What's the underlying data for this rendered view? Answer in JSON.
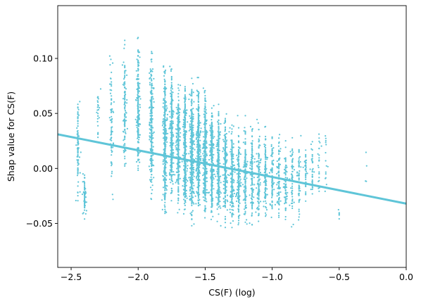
{
  "chart_data": {
    "type": "scatter",
    "title": "",
    "xlabel": "CS(F) (log)",
    "ylabel": "Shap value for CS(F)",
    "xlim": [
      -2.6,
      0.0
    ],
    "ylim": [
      -0.09,
      0.148
    ],
    "x_ticks": [
      -2.5,
      -2.0,
      -1.5,
      -1.0,
      -0.5,
      0.0
    ],
    "x_tick_labels": [
      "−2.5",
      "−2.0",
      "−1.5",
      "−1.0",
      "−0.5",
      "0.0"
    ],
    "y_ticks": [
      -0.05,
      0.0,
      0.05,
      0.1
    ],
    "y_tick_labels": [
      "−0.05",
      "0.00",
      "0.05",
      "0.10"
    ],
    "grid": false,
    "legend": "none",
    "color": "#5fc5d8",
    "point_clusters": [
      {
        "x": -2.45,
        "y_min": -0.045,
        "y_max": 0.08,
        "n": 90
      },
      {
        "x": -2.4,
        "y_min": -0.05,
        "y_max": 0.0,
        "n": 70
      },
      {
        "x": -2.3,
        "y_min": 0.02,
        "y_max": 0.09,
        "n": 25
      },
      {
        "x": -2.2,
        "y_min": -0.04,
        "y_max": 0.13,
        "n": 80
      },
      {
        "x": -2.1,
        "y_min": -0.02,
        "y_max": 0.13,
        "n": 120
      },
      {
        "x": -2.0,
        "y_min": -0.03,
        "y_max": 0.13,
        "n": 220
      },
      {
        "x": -1.9,
        "y_min": -0.04,
        "y_max": 0.12,
        "n": 260
      },
      {
        "x": -1.8,
        "y_min": -0.06,
        "y_max": 0.11,
        "n": 380
      },
      {
        "x": -1.75,
        "y_min": -0.045,
        "y_max": 0.1,
        "n": 320
      },
      {
        "x": -1.7,
        "y_min": -0.05,
        "y_max": 0.09,
        "n": 300
      },
      {
        "x": -1.65,
        "y_min": -0.055,
        "y_max": 0.09,
        "n": 420
      },
      {
        "x": -1.6,
        "y_min": -0.06,
        "y_max": 0.09,
        "n": 480
      },
      {
        "x": -1.55,
        "y_min": -0.05,
        "y_max": 0.085,
        "n": 460
      },
      {
        "x": -1.5,
        "y_min": -0.06,
        "y_max": 0.08,
        "n": 420
      },
      {
        "x": -1.45,
        "y_min": -0.055,
        "y_max": 0.07,
        "n": 360
      },
      {
        "x": -1.4,
        "y_min": -0.06,
        "y_max": 0.065,
        "n": 280
      },
      {
        "x": -1.35,
        "y_min": -0.06,
        "y_max": 0.06,
        "n": 220
      },
      {
        "x": -1.3,
        "y_min": -0.065,
        "y_max": 0.055,
        "n": 200
      },
      {
        "x": -1.25,
        "y_min": -0.065,
        "y_max": 0.05,
        "n": 170
      },
      {
        "x": -1.2,
        "y_min": -0.065,
        "y_max": 0.05,
        "n": 150
      },
      {
        "x": -1.15,
        "y_min": -0.065,
        "y_max": 0.05,
        "n": 140
      },
      {
        "x": -1.1,
        "y_min": -0.06,
        "y_max": 0.05,
        "n": 120
      },
      {
        "x": -1.05,
        "y_min": -0.06,
        "y_max": 0.045,
        "n": 110
      },
      {
        "x": -1.0,
        "y_min": -0.06,
        "y_max": 0.04,
        "n": 100
      },
      {
        "x": -0.95,
        "y_min": -0.06,
        "y_max": 0.045,
        "n": 90
      },
      {
        "x": -0.9,
        "y_min": -0.065,
        "y_max": 0.035,
        "n": 70
      },
      {
        "x": -0.85,
        "y_min": -0.06,
        "y_max": 0.04,
        "n": 60
      },
      {
        "x": -0.8,
        "y_min": -0.06,
        "y_max": 0.04,
        "n": 55
      },
      {
        "x": -0.75,
        "y_min": -0.045,
        "y_max": 0.03,
        "n": 45
      },
      {
        "x": -0.7,
        "y_min": -0.04,
        "y_max": 0.045,
        "n": 35
      },
      {
        "x": -0.65,
        "y_min": -0.03,
        "y_max": 0.045,
        "n": 25
      },
      {
        "x": -0.6,
        "y_min": -0.03,
        "y_max": 0.045,
        "n": 15
      },
      {
        "x": -0.5,
        "y_min": -0.055,
        "y_max": -0.03,
        "n": 6
      },
      {
        "x": -0.3,
        "y_min": -0.035,
        "y_max": 0.04,
        "n": 4
      }
    ],
    "trend_line": {
      "x": [
        -2.6,
        0.0
      ],
      "y": [
        0.031,
        -0.032
      ]
    }
  }
}
